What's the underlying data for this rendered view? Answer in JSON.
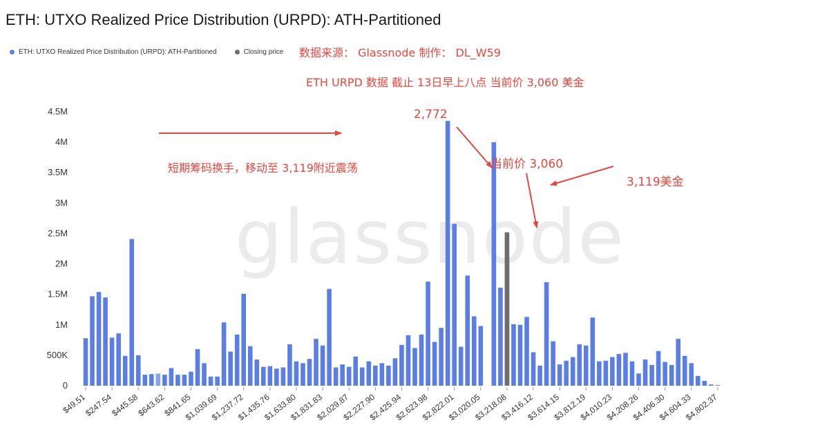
{
  "page": {
    "title": "ETH: UTXO Realized Price Distribution (URPD): ATH-Partitioned",
    "watermark": "glassnode"
  },
  "legend": [
    {
      "label": "ETH: UTXO Realized Price Distribution (URPD): ATH-Partitioned",
      "color": "#5b7ee5"
    },
    {
      "label": "Closing price",
      "color": "#6e6e6e"
    }
  ],
  "annotations": {
    "source": "数据来源： Glassnode  制作： DL_W59",
    "date": "ETH  URPD 数据 截止 13日早上八点 当前价 3,060 美金",
    "move": "短期筹码换手，移动至 3,119附近震荡",
    "p2772": "2,772",
    "current": "当前价 3,060",
    "p3119": "3,119美金"
  },
  "colors": {
    "bar": "#5b7ee5",
    "bar_faded": "#8aa3ea",
    "closing_bar": "#6e6e6e",
    "annotation": "#e8453c",
    "axis_text": "#333333"
  },
  "chart_data": {
    "type": "bar",
    "title": "ETH: UTXO Realized Price Distribution (URPD): ATH-Partitioned",
    "xlabel": "",
    "ylabel": "",
    "ylim": [
      0,
      4500000
    ],
    "yticks": [
      0,
      500000,
      1000000,
      1500000,
      2000000,
      2500000,
      3000000,
      3500000,
      4000000,
      4500000
    ],
    "yticklabels": [
      "0",
      "500K",
      "1M",
      "1.5M",
      "2M",
      "2.5M",
      "3M",
      "3.5M",
      "4M",
      "4.5M"
    ],
    "grid": false,
    "legend_position": "top-left",
    "x_tick_labels": [
      "$49.51",
      "$247.54",
      "$445.58",
      "$643.62",
      "$841.65",
      "$1,039.69",
      "$1,237.72",
      "$1,435.76",
      "$1,633.80",
      "$1,831.83",
      "$2,029.87",
      "$2,227.90",
      "$2,425.94",
      "$2,623.98",
      "$2,822.01",
      "$3,020.05",
      "$3,218.08",
      "$3,416.12",
      "$3,614.15",
      "$3,812.19",
      "$4,010.23",
      "$4,208.26",
      "$4,406.30",
      "$4,604.33",
      "$4,802.37"
    ],
    "x_tick_every": 4,
    "closing_price_index": 64,
    "faded_indices": [
      11
    ],
    "series": [
      {
        "name": "ETH: UTXO Realized Price Distribution (URPD): ATH-Partitioned",
        "values": [
          780000,
          1470000,
          1540000,
          1450000,
          790000,
          860000,
          490000,
          2410000,
          500000,
          180000,
          190000,
          200000,
          180000,
          290000,
          180000,
          180000,
          230000,
          600000,
          370000,
          150000,
          150000,
          1040000,
          560000,
          840000,
          1510000,
          650000,
          430000,
          310000,
          320000,
          280000,
          300000,
          680000,
          400000,
          370000,
          440000,
          770000,
          660000,
          1590000,
          300000,
          350000,
          310000,
          480000,
          300000,
          400000,
          330000,
          370000,
          330000,
          450000,
          670000,
          830000,
          620000,
          840000,
          1710000,
          720000,
          950000,
          4350000,
          2660000,
          640000,
          1810000,
          1140000,
          980000,
          0,
          4000000,
          1610000,
          2120000,
          1010000,
          1000000,
          1130000,
          550000,
          330000,
          1700000,
          730000,
          350000,
          410000,
          470000,
          680000,
          660000,
          1120000,
          400000,
          410000,
          470000,
          520000,
          540000,
          400000,
          200000,
          430000,
          340000,
          570000,
          390000,
          340000,
          770000,
          490000,
          370000,
          160000,
          80000,
          20000,
          10000
        ]
      },
      {
        "name": "Closing price",
        "values": [
          2520000
        ]
      }
    ]
  }
}
